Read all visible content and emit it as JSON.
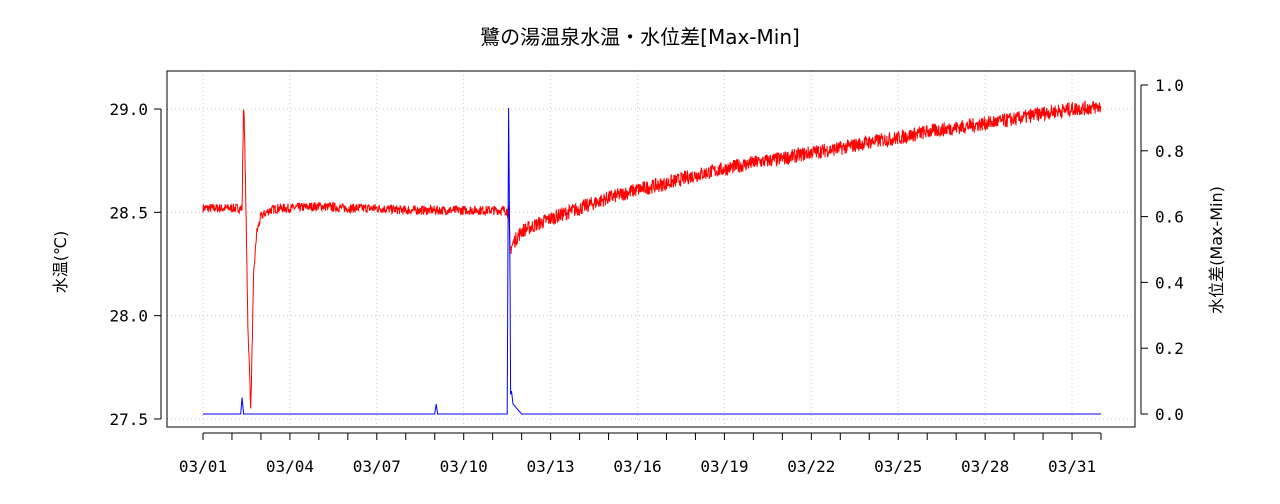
{
  "chart_data": {
    "type": "line",
    "title": "鷺の湯温泉水温・水位差[Max-Min]",
    "ylabel_left": "水温(℃)",
    "ylabel_right": "水位差(Max-Min)",
    "x_tick_labels": [
      "03/01",
      "03/04",
      "03/07",
      "03/10",
      "03/13",
      "03/16",
      "03/19",
      "03/22",
      "03/25",
      "03/28",
      "03/31"
    ],
    "x_tick_days": [
      1,
      4,
      7,
      10,
      13,
      16,
      19,
      22,
      25,
      28,
      31
    ],
    "x_minor_ticks": [
      1,
      2,
      3,
      4,
      5,
      6,
      7,
      8,
      9,
      10,
      11,
      12,
      13,
      14,
      15,
      16,
      17,
      18,
      19,
      20,
      21,
      22,
      23,
      24,
      25,
      26,
      27,
      28,
      29,
      30,
      31,
      32
    ],
    "xlim_days": [
      1,
      32
    ],
    "y_left_ticks": [
      "27.5",
      "28.0",
      "28.5",
      "29.0"
    ],
    "ylim_left": [
      27.5,
      29.0
    ],
    "y_right_ticks": [
      "0.0",
      "0.2",
      "0.4",
      "0.6",
      "0.8",
      "1.0"
    ],
    "ylim_right": [
      0.0,
      1.0
    ],
    "grid": true,
    "series": [
      {
        "axis": "left",
        "color": "#ff0000",
        "x_days": [
          1.0,
          1.5,
          2.0,
          2.35,
          2.4,
          2.45,
          2.55,
          2.65,
          2.75,
          2.85,
          3.0,
          3.3,
          3.6,
          4.0,
          5.0,
          6.0,
          7.0,
          8.0,
          9.0,
          10.0,
          11.0,
          11.55,
          11.6,
          11.75,
          12.0,
          13.0,
          14.0,
          15.0,
          16.0,
          17.0,
          18.0,
          19.0,
          20.0,
          21.0,
          22.0,
          23.0,
          24.0,
          25.0,
          26.0,
          27.0,
          28.0,
          29.0,
          30.0,
          31.0,
          32.0
        ],
        "values": [
          28.52,
          28.52,
          28.52,
          28.52,
          29.05,
          28.78,
          27.95,
          27.55,
          28.2,
          28.4,
          28.48,
          28.51,
          28.52,
          28.52,
          28.53,
          28.52,
          28.52,
          28.51,
          28.51,
          28.51,
          28.51,
          28.51,
          28.32,
          28.36,
          28.41,
          28.47,
          28.52,
          28.57,
          28.61,
          28.64,
          28.68,
          28.71,
          28.74,
          28.76,
          28.79,
          28.81,
          28.84,
          28.86,
          28.89,
          28.91,
          28.93,
          28.95,
          28.98,
          29.0,
          29.01
        ]
      },
      {
        "axis": "right",
        "color": "#0000ff",
        "x_days": [
          1.0,
          2.3,
          2.35,
          2.4,
          9.0,
          9.05,
          9.1,
          11.5,
          11.55,
          11.6,
          11.62,
          11.65,
          11.7,
          11.8,
          12.0,
          32.0
        ],
        "values": [
          0.0,
          0.0,
          0.05,
          0.0,
          0.0,
          0.03,
          0.0,
          0.0,
          0.93,
          0.38,
          0.06,
          0.07,
          0.03,
          0.02,
          0.0,
          0.0
        ]
      }
    ]
  }
}
